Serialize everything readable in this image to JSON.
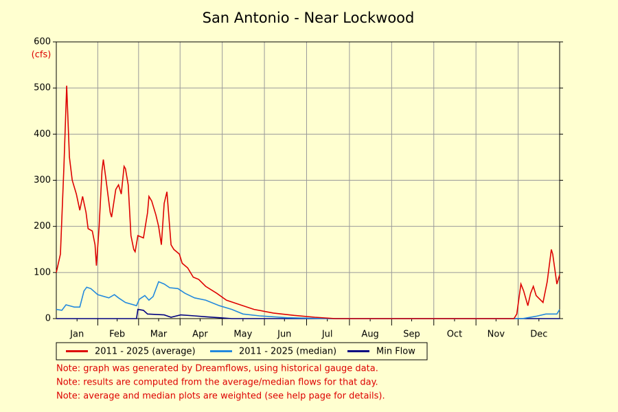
{
  "chart_data": {
    "type": "line",
    "title": "San Antonio - Near Lockwood",
    "y_label": "(cfs)",
    "xlim": [
      1,
      365
    ],
    "xticks": [
      {
        "value": 16,
        "label": "Jan"
      },
      {
        "value": 45,
        "label": "Feb"
      },
      {
        "value": 75,
        "label": "Mar"
      },
      {
        "value": 105,
        "label": "Apr"
      },
      {
        "value": 136,
        "label": "May"
      },
      {
        "value": 166,
        "label": "Jun"
      },
      {
        "value": 197,
        "label": "Jul"
      },
      {
        "value": 228,
        "label": "Aug"
      },
      {
        "value": 258,
        "label": "Sep"
      },
      {
        "value": 289,
        "label": "Oct"
      },
      {
        "value": 319,
        "label": "Nov"
      },
      {
        "value": 350,
        "label": "Dec"
      }
    ],
    "ylim": [
      0,
      600
    ],
    "yticks": [
      0,
      100,
      200,
      300,
      400,
      500,
      600
    ],
    "grid": true,
    "legend": "bottom",
    "series": [
      {
        "name": "2011 - 2025 (average)",
        "color": "#dd0000",
        "x": [
          1,
          4,
          6.5,
          8.5,
          10.5,
          12.5,
          15.5,
          18,
          20,
          22.5,
          24,
          27,
          29,
          30,
          32,
          34,
          35,
          37,
          40,
          41,
          44,
          46,
          48,
          50,
          51,
          53,
          55,
          57,
          58,
          60,
          64,
          67,
          68,
          70,
          73,
          75,
          77,
          79,
          81,
          84,
          86,
          90,
          92,
          96,
          100,
          104,
          109,
          117,
          124,
          134,
          144,
          158,
          173,
          188,
          203,
          332,
          334,
          337,
          339,
          342,
          344,
          346,
          348,
          353,
          356,
          359,
          360,
          363,
          365
        ],
        "values": [
          100,
          140,
          330,
          505,
          350,
          300,
          270,
          235,
          265,
          230,
          195,
          190,
          160,
          115,
          200,
          320,
          345,
          300,
          230,
          220,
          280,
          290,
          270,
          330,
          325,
          290,
          180,
          150,
          145,
          180,
          175,
          230,
          265,
          255,
          225,
          200,
          160,
          250,
          275,
          160,
          150,
          140,
          120,
          110,
          90,
          85,
          70,
          55,
          40,
          30,
          20,
          12,
          7,
          3,
          0,
          0,
          10,
          75,
          60,
          28,
          55,
          70,
          50,
          35,
          80,
          150,
          140,
          75,
          95
        ]
      },
      {
        "name": "2011 - 2025 (median)",
        "color": "#2288dd",
        "x": [
          1,
          5,
          8,
          14,
          18,
          21,
          23,
          26,
          31,
          39,
          43,
          46,
          51,
          59,
          61,
          65,
          68,
          71,
          75,
          79,
          83,
          89,
          94,
          101,
          109,
          119,
          128,
          136,
          148,
          168,
          198,
          338,
          348,
          355,
          363,
          365
        ],
        "values": [
          20,
          18,
          30,
          25,
          25,
          60,
          68,
          65,
          52,
          45,
          52,
          45,
          35,
          28,
          42,
          50,
          40,
          48,
          80,
          75,
          67,
          65,
          55,
          45,
          40,
          28,
          20,
          10,
          6,
          2,
          0,
          0,
          5,
          10,
          10,
          20
        ]
      },
      {
        "name": "Min Flow",
        "color": "#000080",
        "x": [
          1,
          59,
          60,
          64,
          67,
          79,
          84,
          91,
          101,
          109,
          119,
          128,
          365
        ],
        "values": [
          0,
          0,
          20,
          18,
          10,
          8,
          3,
          8,
          6,
          4,
          2,
          0,
          0
        ]
      }
    ],
    "notes": [
      "Note: graph was generated by Dreamflows, using historical gauge data.",
      "Note: results are computed from the average/median flows for that day.",
      "Note: average and median plots are weighted (see help page for details)."
    ]
  }
}
